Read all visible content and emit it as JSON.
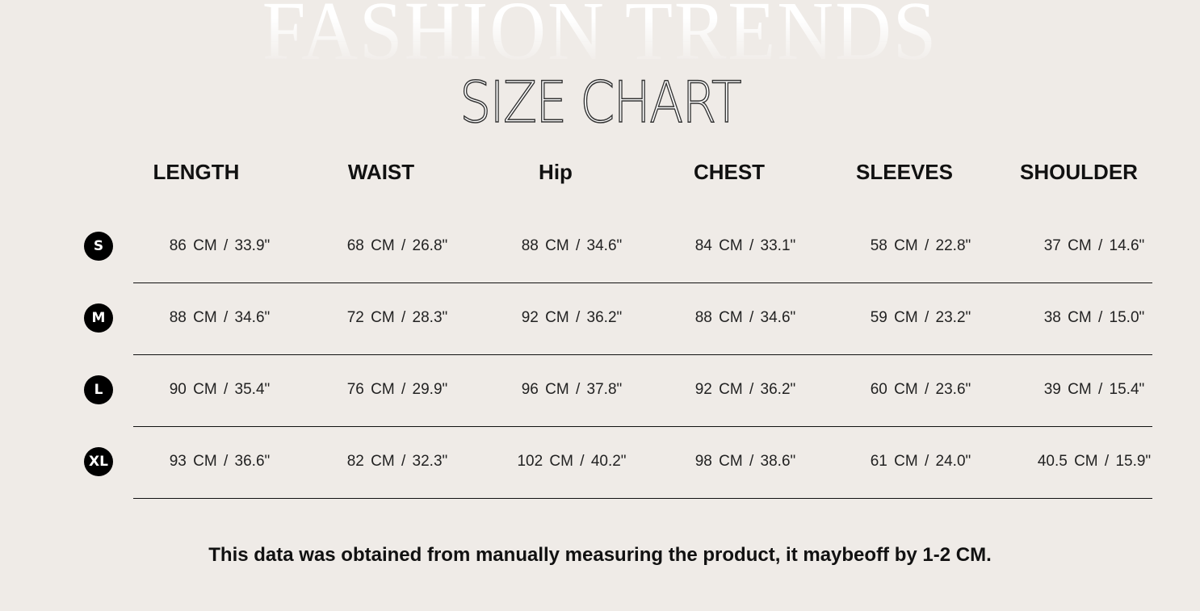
{
  "background_title": "FASHION TRENDS",
  "title": "SIZE CHART",
  "columns": [
    "LENGTH",
    "WAIST",
    "Hip",
    "CHEST",
    "SLEEVES",
    "SHOULDER"
  ],
  "rows": [
    {
      "size": "S",
      "values": [
        "86  CM / 33.9\"",
        "68 CM / 26.8\"",
        "88 CM / 34.6\"",
        "84 CM /  33.1\"",
        "58 CM / 22.8\"",
        "37 CM /  14.6\""
      ]
    },
    {
      "size": "M",
      "values": [
        "88  CM / 34.6\"",
        "72 CM / 28.3\"",
        "92 CM / 36.2\"",
        "88 CM / 34.6\"",
        "59 CM / 23.2\"",
        "38 CM /  15.0\""
      ]
    },
    {
      "size": "L",
      "values": [
        "90  CM / 35.4\"",
        "76 CM / 29.9\"",
        "96 CM / 37.8\"",
        "92 CM / 36.2\"",
        "60 CM / 23.6\"",
        "39 CM / 15.4\""
      ]
    },
    {
      "size": "XL",
      "values": [
        "93  CM / 36.6\"",
        "82 CM / 32.3\"",
        "102 CM / 40.2\"",
        "98 CM / 38.6\"",
        "61 CM / 24.0\"",
        "40.5 CM /  15.9\""
      ]
    }
  ],
  "note": "This data was obtained from manually measuring the product, it maybeoff by 1-2 CM.",
  "colors": {
    "background": "#efebe7",
    "badge": "#000000"
  }
}
